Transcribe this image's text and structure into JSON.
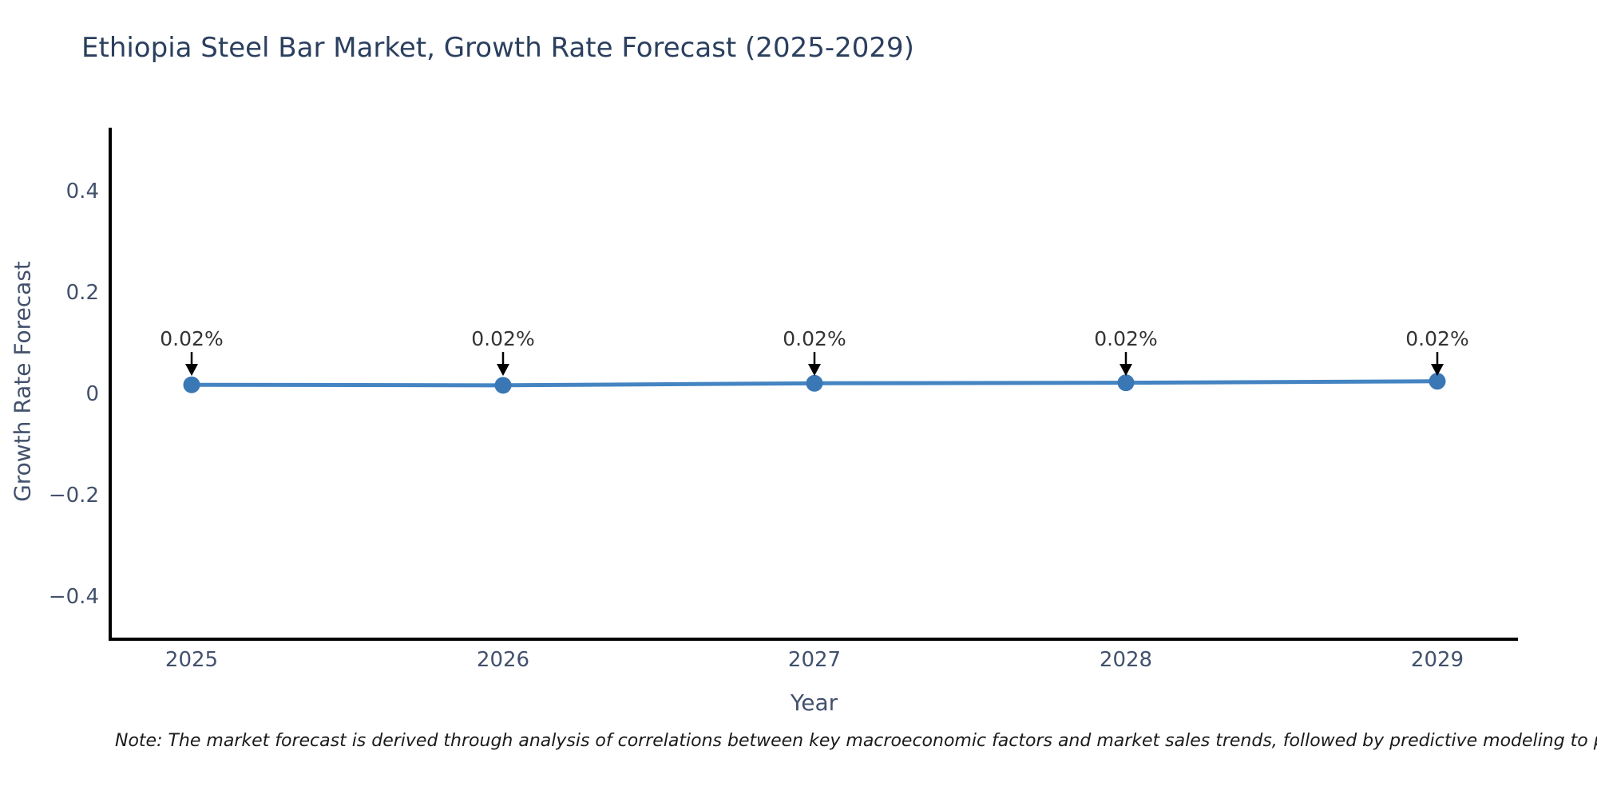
{
  "note": "Note: The market forecast is derived through analysis of correlations between key macroeconomic factors and market sales trends, followed by predictive modeling to project future sales.",
  "chart_data": {
    "type": "line",
    "title": "Ethiopia Steel Bar Market, Growth Rate Forecast (2025-2029)",
    "xlabel": "Year",
    "ylabel": "Growth Rate Forecast",
    "categories": [
      "2025",
      "2026",
      "2027",
      "2028",
      "2029"
    ],
    "series": [
      {
        "name": "Growth Rate Forecast",
        "values": [
          0.02,
          0.02,
          0.02,
          0.02,
          0.02
        ],
        "point_labels": [
          "0.02%",
          "0.02%",
          "0.02%",
          "0.02%",
          "0.02%"
        ],
        "values_rendered": [
          0.017,
          0.016,
          0.02,
          0.021,
          0.024
        ]
      }
    ],
    "ytick_labels": [
      "0.4",
      "0.2",
      "0",
      "−0.2",
      "−0.4"
    ],
    "ytick_values": [
      0.4,
      0.2,
      0,
      -0.2,
      -0.4
    ],
    "ylim": [
      -0.48,
      0.52
    ],
    "grid": false,
    "legend": "none",
    "marker": "circle",
    "annotation_arrows": true,
    "colors": {
      "line": "#4484c2",
      "marker": "#3a77b5",
      "axis": "#000000",
      "tick_text": "#42516c",
      "title_text": "#2b3f5e",
      "annotation_text": "#333333",
      "note_text": "#1a1a1a"
    }
  }
}
